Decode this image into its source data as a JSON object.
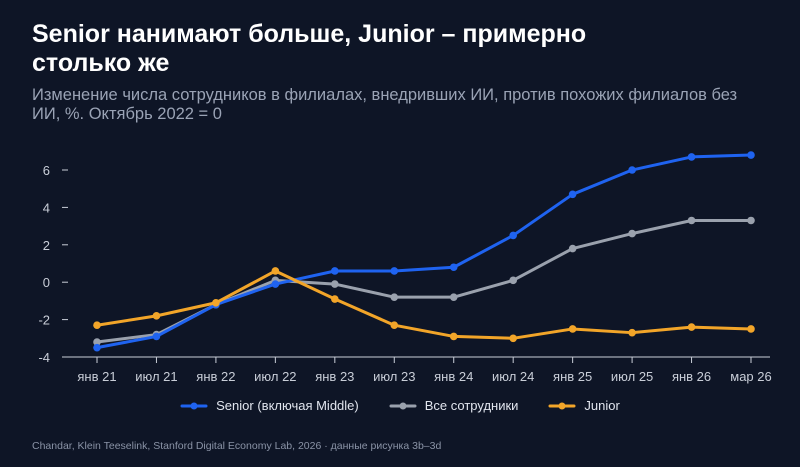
{
  "chart_data": {
    "type": "line",
    "title": "Senior нанимают больше, Junior – примерно столько же",
    "subtitle": "Изменение числа сотрудников в филиалах, внедривших ИИ, против похожих филиалов без ИИ, %. Октябрь 2022 = 0",
    "x_tick_labels": [
      "янв 21",
      "июл 21",
      "янв 22",
      "июл 22",
      "янв 23",
      "июл 23",
      "янв 24",
      "июл 24",
      "янв 25",
      "июл 25",
      "янв 26",
      "мар 26"
    ],
    "x": [
      "янв 21",
      "июл 21",
      "янв 22",
      "июл 22",
      "янв 23",
      "июл 23",
      "янв 24",
      "июл 24",
      "янв 25",
      "июл 25",
      "янв 26",
      "мар 26"
    ],
    "ylim": [
      -4,
      7
    ],
    "y_ticks": [
      -4,
      -2,
      0,
      2,
      4,
      6
    ],
    "y_tick_labels": [
      "-4",
      "-2",
      "0",
      "2",
      "4",
      "6"
    ],
    "grid": false,
    "legend_position": "bottom",
    "series": [
      {
        "name": "Senior (включая Middle)",
        "color": "#1f63f0",
        "values": [
          -3.5,
          -2.9,
          -1.2,
          -0.1,
          0.6,
          0.6,
          0.8,
          2.5,
          4.7,
          6.0,
          6.7,
          6.8
        ]
      },
      {
        "name": "Все сотрудники",
        "color": "#9aa1ad",
        "values": [
          -3.2,
          -2.8,
          -1.2,
          0.1,
          -0.1,
          -0.8,
          -0.8,
          0.1,
          1.8,
          2.6,
          3.3,
          3.3
        ]
      },
      {
        "name": "Junior",
        "color": "#f2a529",
        "values": [
          -2.3,
          -1.8,
          -1.1,
          0.6,
          -0.9,
          -2.3,
          -2.9,
          -3.0,
          -2.5,
          -2.7,
          -2.4,
          -2.5
        ]
      }
    ]
  },
  "source_note": "Chandar, Klein Teeselink, Stanford Digital Economy Lab, 2026 · данные рисунка 3b–3d"
}
